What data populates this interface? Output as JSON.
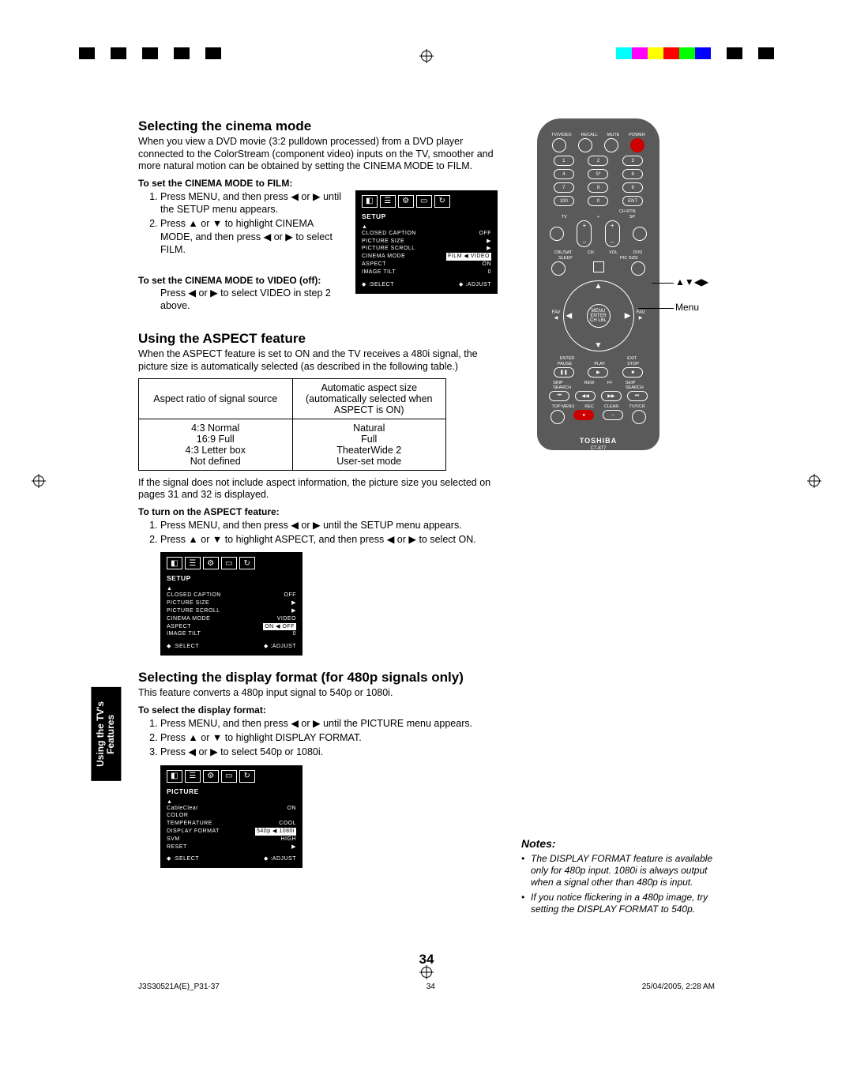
{
  "regColors": [
    "#00ffff",
    "#ff00ff",
    "#ffff00",
    "#ff0000",
    "#00ff00",
    "#0000ff",
    "#ffffff",
    "#000000",
    "#ffffff",
    "#000000"
  ],
  "cinema": {
    "heading": "Selecting the cinema mode",
    "intro": "When you view a DVD movie (3:2 pulldown processed) from a DVD player connected to the ColorStream (component video) inputs on the TV, smoother and more natural motion can be obtained by setting the CINEMA MODE to FILM.",
    "setFilmTitle": "To set the CINEMA MODE to FILM:",
    "steps": [
      "Press MENU, and then press ◀ or ▶ until the SETUP menu appears.",
      "Press ▲ or ▼ to highlight CINEMA MODE, and then press ◀ or ▶ to select FILM."
    ],
    "setVideoTitle": "To set the CINEMA MODE to VIDEO (off):",
    "setVideoText": "Press ◀ or ▶ to select VIDEO in step 2 above."
  },
  "osd1": {
    "title": "SETUP",
    "rows": [
      [
        "CLOSED CAPTION",
        "OFF"
      ],
      [
        "PICTURE SIZE",
        "▶"
      ],
      [
        "PICTURE SCROLL",
        "▶"
      ],
      [
        "CINEMA MODE",
        "FILM ◀ VIDEO"
      ],
      [
        "ASPECT",
        "ON"
      ],
      [
        "IMAGE TILT",
        "0"
      ]
    ],
    "highlightIndex": 3,
    "footerL": "◆ :SELECT",
    "footerR": "◆ :ADJUST"
  },
  "aspect": {
    "heading": "Using the ASPECT feature",
    "intro": "When the ASPECT feature is set to ON and the TV receives a 480i signal, the picture size is automatically selected (as described in the following table.)",
    "tableHeader": [
      "Aspect ratio of signal source",
      "Automatic aspect size (automatically selected when ASPECT is ON)"
    ],
    "tableRows": [
      [
        "4:3 Normal",
        "Natural"
      ],
      [
        "16:9 Full",
        "Full"
      ],
      [
        "4:3 Letter box",
        "TheaterWide 2"
      ],
      [
        "Not defined",
        "User-set mode"
      ]
    ],
    "afterTable": "If the signal does not include aspect information, the picture size you selected on pages 31 and 32 is displayed.",
    "turnOnTitle": "To turn on the ASPECT feature:",
    "turnOnSteps": [
      "Press MENU, and then press ◀ or ▶ until the SETUP menu appears.",
      "Press ▲ or ▼ to highlight ASPECT, and then press ◀ or ▶ to select ON."
    ]
  },
  "osd2": {
    "title": "SETUP",
    "rows": [
      [
        "CLOSED CAPTION",
        "OFF"
      ],
      [
        "PICTURE SIZE",
        "▶"
      ],
      [
        "PICTURE SCROLL",
        "▶"
      ],
      [
        "CINEMA MODE",
        "VIDEO"
      ],
      [
        "ASPECT",
        "ON ◀ OFF"
      ],
      [
        "IMAGE TILT",
        "0"
      ]
    ],
    "highlightIndex": 4,
    "footerL": "◆ :SELECT",
    "footerR": "◆ :ADJUST"
  },
  "display": {
    "heading": "Selecting the display format (for 480p signals only)",
    "intro": "This feature converts a 480p input signal to 540p or 1080i.",
    "stepsTitle": "To select the display format:",
    "steps": [
      "Press MENU, and then press ◀ or ▶ until the PICTURE menu appears.",
      "Press ▲ or ▼ to highlight DISPLAY FORMAT.",
      "Press ◀ or ▶ to select 540p or 1080i."
    ]
  },
  "osd3": {
    "title": "PICTURE",
    "rows": [
      [
        "CableClear",
        "ON"
      ],
      [
        "COLOR",
        ""
      ],
      [
        "TEMPERATURE",
        "COOL"
      ],
      [
        "DISPLAY FORMAT",
        "540p ◀ 1080i"
      ],
      [
        "SVM",
        "HIGH"
      ],
      [
        "RESET",
        "▶"
      ]
    ],
    "highlightIndex": 3,
    "footerL": "◆ :SELECT",
    "footerR": "◆ :ADJUST"
  },
  "remote": {
    "topLabels": [
      "TV/VIDEO",
      "RECALL",
      "MUTE",
      "POWER"
    ],
    "numbers": [
      "1",
      "2",
      "3",
      "4",
      "5*",
      "6",
      "7",
      "8",
      "9",
      "100",
      "0",
      "ENT"
    ],
    "chrtnLabel": "CH RTN",
    "midLabels1": [
      "TV",
      "+",
      "SP"
    ],
    "midLabels2": [
      "CBL/SAT",
      "CH",
      "VOL",
      "DVD"
    ],
    "sleep": "SLEEP",
    "picSize": "PIC SIZE",
    "favL": "FAV\n◀",
    "favR": "FAV\n▶",
    "favCenter": "MENU\nENTER\nCH LBL",
    "enter": "ENTER",
    "exit": "EXIT",
    "transportLabels": [
      "PAUSE",
      "PLAY",
      "STOP"
    ],
    "row2Labels": [
      "SKIP\nSEARCH",
      "REW",
      "FF",
      "SKIP\nSEARCH"
    ],
    "row3Labels": [
      "TOP MENU",
      "REC",
      "CLEAR",
      "TV/VCR"
    ],
    "logo": "TOSHIBA",
    "model": "CT-877"
  },
  "calloutArrows": "▲▼◀▶",
  "calloutMenu": "Menu",
  "notes": {
    "title": "Notes:",
    "items": [
      "The DISPLAY FORMAT feature is available only for 480p input. 1080i is always output when a signal other than 480p is input.",
      "If you notice flickering in a 480p image, try setting the DISPLAY FORMAT to 540p."
    ]
  },
  "sideTab": "Using the TV's\nFeatures",
  "pageNumber": "34",
  "footer": {
    "left": "J3S30521A(E)_P31-37",
    "mid": "34",
    "right": "25/04/2005, 2:28 AM"
  }
}
